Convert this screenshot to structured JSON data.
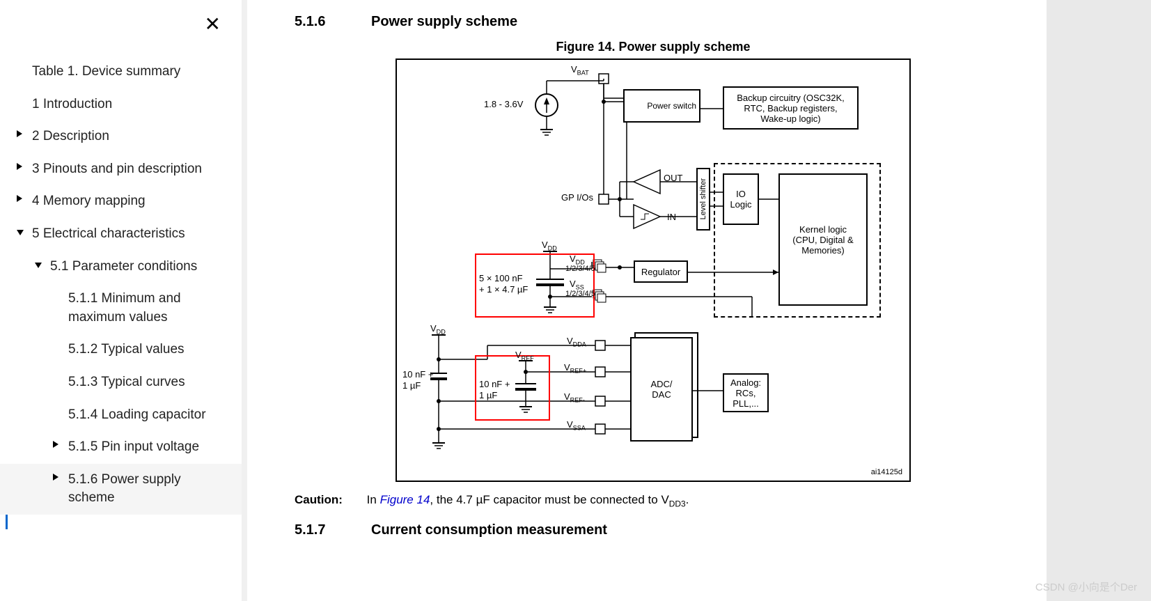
{
  "sidebar": {
    "items": [
      {
        "label": "Table 1. Device summary",
        "level": 1,
        "arrow": ""
      },
      {
        "label": "1 Introduction",
        "level": 1,
        "arrow": ""
      },
      {
        "label": "2 Description",
        "level": 1,
        "arrow": "right"
      },
      {
        "label": "3 Pinouts and pin description",
        "level": 1,
        "arrow": "right"
      },
      {
        "label": "4 Memory mapping",
        "level": 1,
        "arrow": "right"
      },
      {
        "label": "5 Electrical characteristics",
        "level": 1,
        "arrow": "down"
      },
      {
        "label": "5.1 Parameter conditions",
        "level": 2,
        "arrow": "down"
      },
      {
        "label": "5.1.1 Minimum and maximum values",
        "level": 3,
        "arrow": ""
      },
      {
        "label": "5.1.2 Typical values",
        "level": 3,
        "arrow": ""
      },
      {
        "label": "5.1.3 Typical curves",
        "level": 3,
        "arrow": ""
      },
      {
        "label": "5.1.4 Loading capacitor",
        "level": 3,
        "arrow": ""
      },
      {
        "label": "5.1.5 Pin input voltage",
        "level": 3,
        "arrow": "right"
      },
      {
        "label": "5.1.6 Power supply scheme",
        "level": 3,
        "arrow": "right",
        "active": true
      }
    ]
  },
  "content": {
    "section_num": "5.1.6",
    "section_title": "Power supply scheme",
    "figure_title": "Figure 14. Power supply scheme",
    "next_section_num": "5.1.7",
    "next_section_title": "Current consumption measurement",
    "caution_label": "Caution:",
    "caution_text_pre": "In ",
    "caution_link": "Figure 14",
    "caution_text_mid": ", the 4.7 µF capacitor must be connected to V",
    "caution_sub": "DD3",
    "caution_text_post": "."
  },
  "diagram": {
    "voltage_range": "1.8 - 3.6V",
    "vbat": "V",
    "vbat_sub": "BAT",
    "power_switch": "Power switch",
    "backup_l1": "Backup circuitry (OSC32K,",
    "backup_l2": "RTC, Backup registers,",
    "backup_l3": "Wake-up logic)",
    "gpio": "GP I/Os",
    "out": "OUT",
    "in": "IN",
    "level_shifter": "Level shifter",
    "io_logic_l1": "IO",
    "io_logic_l2": "Logic",
    "kernel_l1": "Kernel logic",
    "kernel_l2": "(CPU, Digital &",
    "kernel_l3": "Memories)",
    "vdd_top": "V",
    "vdd_top_sub": "DD",
    "vdd_pin": "V",
    "vdd_pin_sub": "DD",
    "vdd_frac": "1/2/3/4/5",
    "vss_pin": "V",
    "vss_pin_sub": "SS",
    "vss_frac": "1/2/3/4/5",
    "cap1_l1": "5 × 100 nF",
    "cap1_l2": "+ 1 × 4.7 µF",
    "regulator": "Regulator",
    "vdd_left": "V",
    "vdd_left_sub": "DD",
    "cap2_l1": "10 nF +",
    "cap2_l2": "1 µF",
    "vref_top": "V",
    "vref_top_sub": "REF",
    "cap3_l1": "10 nF +",
    "cap3_l2": "1 µF",
    "vdda": "V",
    "vdda_sub": "DDA",
    "vrefp": "V",
    "vrefp_sub": "REF+",
    "vrefm": "V",
    "vrefm_sub": "REF-",
    "vssa": "V",
    "vssa_sub": "SSA",
    "adc_l1": "ADC/",
    "adc_l2": "DAC",
    "analog_l1": "Analog:",
    "analog_l2": "RCs,",
    "analog_l3": "PLL,...",
    "figid": "ai14125d",
    "colors": {
      "highlight": "#ff0000",
      "line": "#000000",
      "link": "#0000cc"
    }
  },
  "watermark": "CSDN @小向是个Der"
}
